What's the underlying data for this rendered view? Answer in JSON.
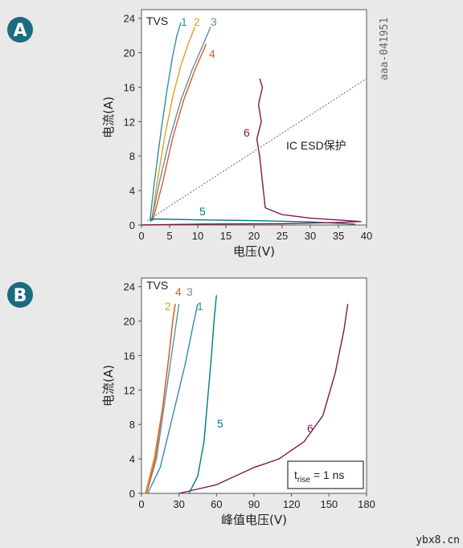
{
  "badges": [
    "A",
    "B"
  ],
  "figure_code": "aaa-041951",
  "watermark": "ybx8.cn",
  "colors": {
    "badge": "#1d6b80",
    "series1": "#2f8fa8",
    "series2": "#e0a020",
    "series3": "#5f8fa8",
    "series4": "#e2572a",
    "series5": "#007a80",
    "series6": "#7a1a4a"
  },
  "chart_data": [
    {
      "type": "line",
      "panel": "A",
      "xlabel": "电压(V)",
      "ylabel": "电流(A)",
      "xlim": [
        0,
        40
      ],
      "ylim": [
        0,
        25
      ],
      "xticks": [
        0,
        5,
        10,
        15,
        20,
        25,
        30,
        35,
        40
      ],
      "yticks": [
        0,
        4,
        8,
        12,
        16,
        20,
        24
      ],
      "corner_label": "TVS",
      "annotation": "IC ESD保护",
      "series": [
        {
          "name": "1",
          "x": [
            1.5,
            2.3,
            3.5,
            4.5,
            5.5,
            6.3,
            7.0
          ],
          "y": [
            0.5,
            5,
            11,
            15.5,
            19.5,
            22,
            23.5
          ]
        },
        {
          "name": "2",
          "x": [
            1.8,
            2.8,
            4.2,
            5.6,
            7.0,
            8.3,
            9.5
          ],
          "y": [
            0.5,
            5,
            10.5,
            15,
            18.5,
            21,
            23
          ]
        },
        {
          "name": "3",
          "x": [
            1.8,
            3.2,
            5.0,
            7.0,
            9.0,
            11.0,
            12.3
          ],
          "y": [
            0.5,
            5,
            10,
            14.5,
            18,
            21,
            23
          ]
        },
        {
          "name": "4",
          "x": [
            2.0,
            3.8,
            5.5,
            7.5,
            9.5,
            11.5
          ],
          "y": [
            0.5,
            5,
            10,
            14.5,
            18,
            21
          ]
        },
        {
          "name": "5",
          "x": [
            1.6,
            1.8,
            10,
            20,
            30,
            38
          ],
          "y": [
            0.4,
            0.7,
            0.6,
            0.5,
            0.35,
            0.1
          ]
        },
        {
          "name": "6",
          "x": [
            0,
            10,
            25,
            35,
            39,
            30,
            25,
            22,
            21.5,
            21,
            20.5,
            21.3,
            20.8,
            21.5,
            21
          ],
          "y": [
            0,
            0.1,
            0.15,
            0.3,
            0.4,
            0.8,
            1.2,
            2,
            5,
            8,
            10,
            12,
            14,
            16,
            17
          ]
        },
        {
          "name": "IC ESD保护",
          "x": [
            1,
            40
          ],
          "y": [
            0.5,
            17
          ]
        }
      ]
    },
    {
      "type": "line",
      "panel": "B",
      "xlabel": "峰值电压(V)",
      "ylabel": "电流(A)",
      "xlim": [
        0,
        180
      ],
      "ylim": [
        0,
        25
      ],
      "xticks": [
        0,
        30,
        60,
        90,
        120,
        150,
        180
      ],
      "yticks": [
        0,
        4,
        8,
        12,
        16,
        20,
        24
      ],
      "corner_label": "TVS",
      "annotation": "t_rise = 1 ns",
      "annotation_main": "t",
      "annotation_sub": "rise",
      "annotation_tail": " = 1 ns",
      "series": [
        {
          "name": "1",
          "x": [
            5,
            15,
            25,
            35,
            42,
            45
          ],
          "y": [
            0,
            3,
            9,
            15,
            20,
            22
          ]
        },
        {
          "name": "2",
          "x": [
            3,
            10,
            17,
            22,
            25,
            27
          ],
          "y": [
            0,
            4,
            10,
            16,
            20,
            22
          ]
        },
        {
          "name": "3",
          "x": [
            4,
            12,
            18,
            24,
            28,
            30
          ],
          "y": [
            0,
            4,
            10,
            16,
            20,
            22
          ]
        },
        {
          "name": "4",
          "x": [
            4,
            11,
            17,
            22,
            25,
            27
          ],
          "y": [
            0,
            4,
            10,
            16,
            20,
            22
          ]
        },
        {
          "name": "5",
          "x": [
            38,
            45,
            50,
            53,
            56,
            58,
            60
          ],
          "y": [
            0,
            2,
            6,
            11,
            16,
            20,
            23
          ]
        },
        {
          "name": "6",
          "x": [
            30,
            60,
            90,
            110,
            130,
            145,
            155,
            162,
            165
          ],
          "y": [
            0,
            1,
            3,
            4,
            6,
            9,
            14,
            19,
            22
          ]
        }
      ]
    }
  ]
}
